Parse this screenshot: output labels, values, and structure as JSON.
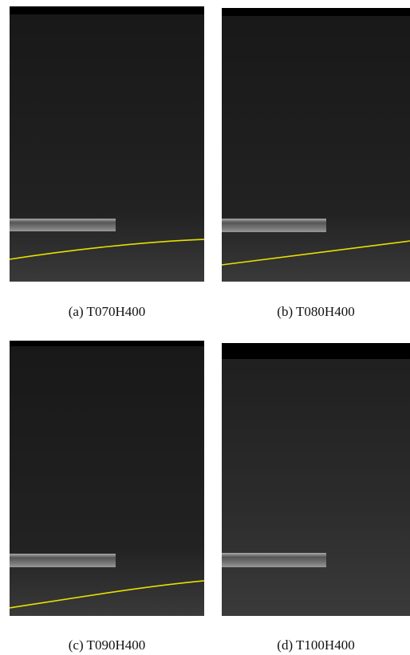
{
  "panels": [
    {
      "caption": "(a) T070H400"
    },
    {
      "caption": "(b) T080H400"
    },
    {
      "caption": "(c) T090H400"
    },
    {
      "caption": "(d) T100H400"
    }
  ]
}
